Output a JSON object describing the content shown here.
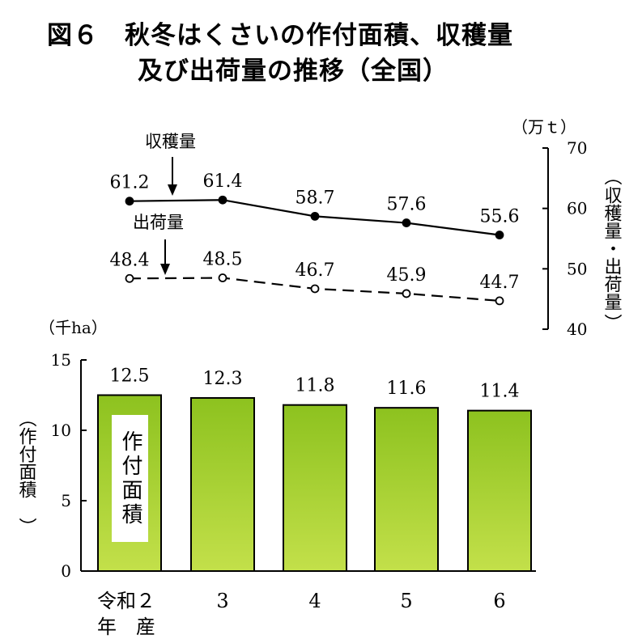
{
  "title_line1": "図６　秋冬はくさいの作付面積、収穫量",
  "title_line2": "及び出荷量の推移（全国）",
  "chart_data": [
    {
      "type": "line",
      "categories": [
        "令和２年産",
        "3",
        "4",
        "5",
        "6"
      ],
      "series": [
        {
          "name": "収穫量",
          "values": [
            61.2,
            61.4,
            58.7,
            57.6,
            55.6
          ],
          "style": "solid",
          "marker": "filled"
        },
        {
          "name": "出荷量",
          "values": [
            48.4,
            48.5,
            46.7,
            45.9,
            44.7
          ],
          "style": "dashed",
          "marker": "open"
        }
      ],
      "unit": "（万ｔ）",
      "ylabel": "収穫量・出荷量",
      "ylim": [
        40,
        70
      ],
      "yticks": [
        40,
        50,
        60,
        70
      ],
      "value_labels": {
        "収穫量": [
          "61.2",
          "61.4",
          "58.7",
          "57.6",
          "55.6"
        ],
        "出荷量": [
          "48.4",
          "48.5",
          "46.7",
          "45.9",
          "44.7"
        ]
      }
    },
    {
      "type": "bar",
      "categories": [
        "令和２年産",
        "3",
        "4",
        "5",
        "6"
      ],
      "values": [
        12.5,
        12.3,
        11.8,
        11.6,
        11.4
      ],
      "value_labels": [
        "12.5",
        "12.3",
        "11.8",
        "11.6",
        "11.4"
      ],
      "unit": "（千ha）",
      "ylabel": "作付面積",
      "ylim": [
        0,
        15
      ],
      "yticks": [
        0,
        5,
        10,
        15
      ],
      "bar_label": "作付面積",
      "color_top": "#8dc21f",
      "color_bottom": "#c3e04a"
    }
  ],
  "x_labels": {
    "first_line1": "令和２",
    "first_line2": "年　産",
    "rest": [
      "3",
      "4",
      "5",
      "6"
    ]
  },
  "annotations": {
    "harvest_arrow_label": "収穫量",
    "shipment_arrow_label": "出荷量"
  }
}
